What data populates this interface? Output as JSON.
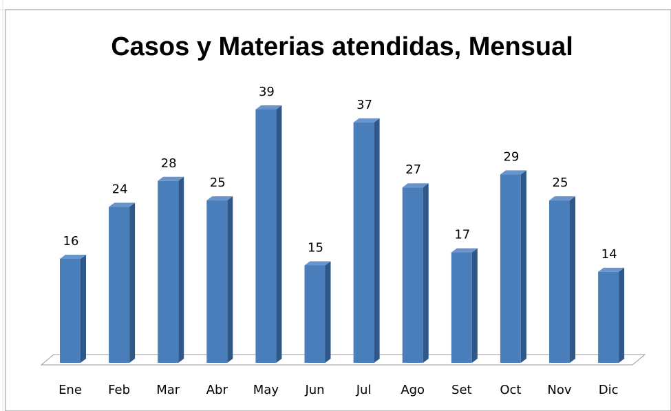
{
  "chart_data": {
    "type": "bar",
    "title": "Casos y Materias atendidas, Mensual",
    "categories": [
      "Ene",
      "Feb",
      "Mar",
      "Abr",
      "May",
      "Jun",
      "Jul",
      "Ago",
      "Set",
      "Oct",
      "Nov",
      "Dic"
    ],
    "values": [
      16,
      24,
      28,
      25,
      39,
      15,
      37,
      27,
      17,
      29,
      25,
      14
    ],
    "color": "#4a7ebb"
  }
}
